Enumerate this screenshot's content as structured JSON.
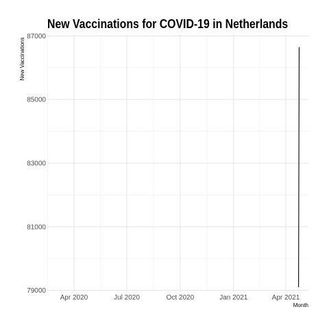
{
  "chart_data": {
    "type": "line",
    "title": "New Vaccinations for COVID-19 in Netherlands",
    "xlabel": "Month",
    "ylabel": "New Vaccinations",
    "x_ticks": [
      "Apr 2020",
      "Jul 2020",
      "Oct 2020",
      "Jan 2021",
      "Apr 2021"
    ],
    "y_ticks": [
      "79000",
      "81000",
      "83000",
      "85000",
      "87000"
    ],
    "xlim": [
      "2020-02-15",
      "2021-05-10"
    ],
    "ylim": [
      78950,
      87050
    ],
    "grid": true,
    "series": [
      {
        "x": [
          "2021-04-23",
          "2021-04-24"
        ],
        "values": [
          79100,
          86650
        ],
        "color": "#000000"
      }
    ]
  }
}
